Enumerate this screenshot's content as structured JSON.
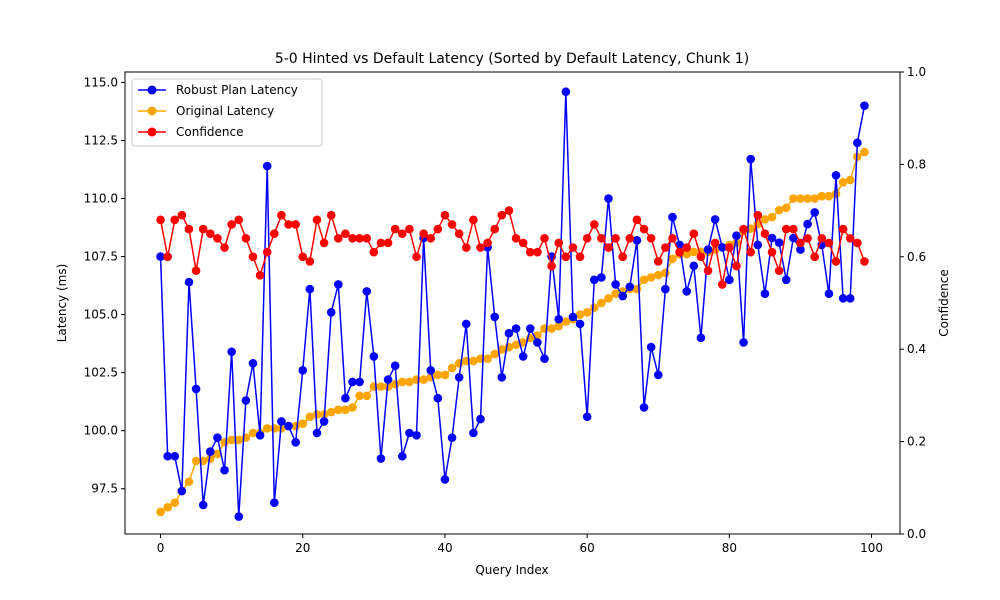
{
  "chart_data": {
    "type": "line",
    "title": "5-0 Hinted vs Default Latency (Sorted by Default Latency, Chunk 1)",
    "xlabel": "Query Index",
    "ylabel": "Latency (ms)",
    "y2label": "Confidence",
    "xlim": [
      -5,
      104
    ],
    "ylim": [
      95.55,
      115.45
    ],
    "y2lim": [
      0.0,
      1.0
    ],
    "xticks": [
      0,
      20,
      40,
      60,
      80,
      100
    ],
    "yticks": [
      97.5,
      100.0,
      102.5,
      105.0,
      107.5,
      110.0,
      112.5,
      115.0
    ],
    "y2ticks": [
      0.0,
      0.2,
      0.4,
      0.6,
      0.8,
      1.0
    ],
    "xtick_labels": [
      "0",
      "20",
      "40",
      "60",
      "80",
      "100"
    ],
    "ytick_labels": [
      "97.5",
      "100.0",
      "102.5",
      "105.0",
      "107.5",
      "110.0",
      "112.5",
      "115.0"
    ],
    "y2tick_labels": [
      "0.0",
      "0.2",
      "0.4",
      "0.6",
      "0.8",
      "1.0"
    ],
    "legend_position": "top-left",
    "grid": false,
    "series": [
      {
        "name": "Robust Plan Latency",
        "color": "#0000ff",
        "axis": "left",
        "values": [
          107.5,
          98.9,
          98.9,
          97.4,
          106.4,
          101.8,
          96.8,
          99.1,
          99.7,
          98.3,
          103.4,
          96.3,
          101.3,
          102.9,
          99.8,
          111.4,
          96.9,
          100.4,
          100.2,
          99.5,
          102.6,
          106.1,
          99.9,
          100.4,
          105.1,
          106.3,
          101.4,
          102.1,
          102.1,
          106.0,
          103.2,
          98.8,
          102.2,
          102.8,
          98.9,
          99.9,
          99.8,
          108.3,
          102.6,
          101.4,
          97.9,
          99.7,
          102.3,
          104.6,
          99.9,
          100.5,
          107.9,
          104.9,
          102.3,
          104.2,
          104.4,
          103.2,
          104.4,
          103.8,
          103.1,
          107.5,
          104.8,
          114.6,
          104.9,
          104.6,
          100.6,
          106.5,
          106.6,
          110.0,
          106.3,
          105.8,
          106.2,
          108.2,
          101.0,
          103.6,
          102.4,
          106.1,
          109.2,
          108.0,
          106.0,
          107.1,
          104.0,
          107.8,
          109.1,
          107.9,
          106.5,
          108.4,
          103.8,
          111.7,
          108.0,
          105.9,
          108.3,
          108.1,
          106.5,
          108.3,
          107.8,
          108.9,
          109.4,
          108.0,
          105.9,
          111.0,
          105.7,
          105.7,
          112.4,
          114.0
        ]
      },
      {
        "name": "Original Latency",
        "color": "#ffa500",
        "axis": "left",
        "values": [
          96.5,
          96.7,
          96.9,
          97.4,
          97.8,
          98.7,
          98.7,
          98.8,
          99.0,
          99.5,
          99.6,
          99.6,
          99.7,
          99.9,
          99.9,
          100.1,
          100.1,
          100.1,
          100.2,
          100.2,
          100.3,
          100.6,
          100.7,
          100.7,
          100.8,
          100.9,
          100.9,
          101.0,
          101.5,
          101.5,
          101.9,
          101.9,
          101.9,
          102.0,
          102.1,
          102.1,
          102.2,
          102.2,
          102.3,
          102.4,
          102.4,
          102.7,
          102.9,
          103.0,
          103.0,
          103.1,
          103.1,
          103.3,
          103.5,
          103.6,
          103.7,
          103.8,
          104.0,
          104.1,
          104.4,
          104.4,
          104.5,
          104.7,
          104.8,
          105.0,
          105.1,
          105.3,
          105.5,
          105.7,
          105.9,
          106.0,
          106.1,
          106.1,
          106.5,
          106.6,
          106.7,
          106.8,
          107.4,
          107.6,
          107.6,
          107.7,
          107.7,
          107.7,
          107.8,
          107.9,
          108.0,
          108.1,
          108.6,
          108.7,
          108.9,
          109.1,
          109.2,
          109.5,
          109.6,
          110.0,
          110.0,
          110.0,
          110.0,
          110.1,
          110.1,
          110.2,
          110.7,
          110.8,
          111.8,
          112.0
        ]
      },
      {
        "name": "Confidence",
        "color": "#ff0000",
        "axis": "right",
        "values": [
          0.68,
          0.6,
          0.68,
          0.69,
          0.66,
          0.57,
          0.66,
          0.65,
          0.64,
          0.62,
          0.67,
          0.68,
          0.64,
          0.6,
          0.56,
          0.61,
          0.65,
          0.69,
          0.67,
          0.67,
          0.6,
          0.59,
          0.68,
          0.63,
          0.69,
          0.64,
          0.65,
          0.64,
          0.64,
          0.64,
          0.61,
          0.63,
          0.63,
          0.66,
          0.65,
          0.66,
          0.6,
          0.65,
          0.64,
          0.66,
          0.69,
          0.67,
          0.65,
          0.62,
          0.68,
          0.62,
          0.63,
          0.66,
          0.69,
          0.7,
          0.64,
          0.63,
          0.61,
          0.61,
          0.64,
          0.58,
          0.63,
          0.6,
          0.62,
          0.6,
          0.64,
          0.67,
          0.64,
          0.62,
          0.64,
          0.6,
          0.64,
          0.68,
          0.66,
          0.64,
          0.59,
          0.62,
          0.64,
          0.61,
          0.62,
          0.65,
          0.6,
          0.57,
          0.63,
          0.54,
          0.62,
          0.58,
          0.66,
          0.61,
          0.69,
          0.65,
          0.61,
          0.57,
          0.66,
          0.66,
          0.63,
          0.64,
          0.6,
          0.64,
          0.63,
          0.59,
          0.66,
          0.64,
          0.63,
          0.59
        ]
      }
    ]
  }
}
